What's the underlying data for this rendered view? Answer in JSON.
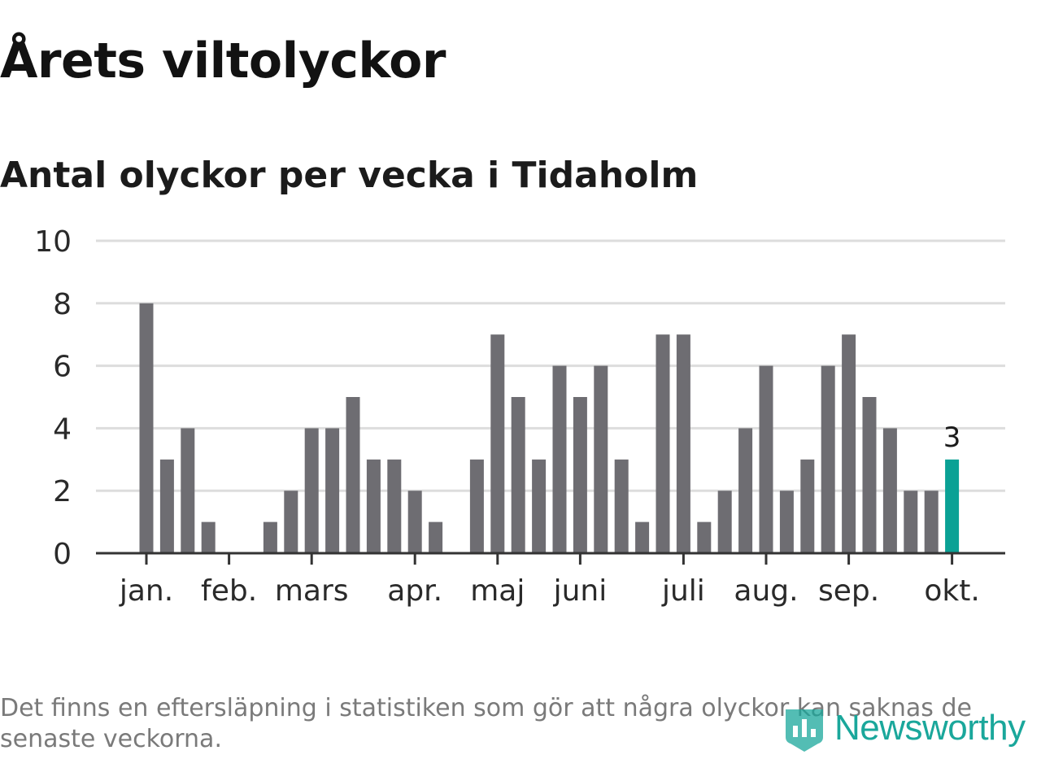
{
  "title": "Årets viltolyckor",
  "subtitle": "Antal olyckor per vecka i Tidaholm",
  "footnote": "Det finns en eftersläpning i statistiken som gör att några olyckor kan saknas de senaste veckorna.",
  "brand": "Newsworthy",
  "colors": {
    "bar": "#6e6d72",
    "highlight": "#0aa195",
    "grid": "#dddddd",
    "axis": "#333333"
  },
  "chart_data": {
    "type": "bar",
    "y_ticks": [
      0,
      2,
      4,
      6,
      8,
      10
    ],
    "ylim": [
      0,
      10
    ],
    "x_tick_labels": [
      "jan.",
      "feb.",
      "mars",
      "apr.",
      "maj",
      "juni",
      "juli",
      "aug.",
      "sep.",
      "okt."
    ],
    "x_tick_week_index": [
      0,
      4,
      8,
      13,
      17,
      21,
      26,
      30,
      34,
      39
    ],
    "values": [
      8,
      3,
      4,
      1,
      0,
      0,
      1,
      2,
      4,
      4,
      5,
      3,
      3,
      2,
      1,
      0,
      3,
      7,
      5,
      3,
      6,
      5,
      6,
      3,
      1,
      7,
      7,
      1,
      2,
      4,
      6,
      2,
      3,
      6,
      7,
      5,
      4,
      2,
      2,
      3
    ],
    "highlight_last": true,
    "last_value_label": "3",
    "grid": true
  }
}
